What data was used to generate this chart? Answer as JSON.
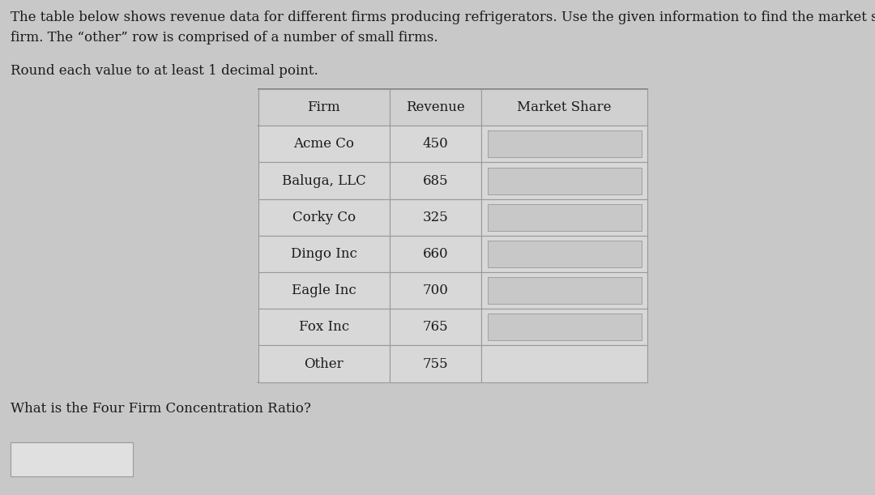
{
  "title_line1": "The table below shows revenue data for different firms producing refrigerators. Use the given information to find the market share of each",
  "title_line2": "firm. The “other” row is comprised of a number of small firms.",
  "subtitle_text": "Round each value to at least 1 decimal point.",
  "question_text": "What is the Four Firm Concentration Ratio?",
  "col_headers": [
    "Firm",
    "Revenue",
    "Market Share"
  ],
  "firms": [
    "Acme Co",
    "Baluga, LLC",
    "Corky Co",
    "Dingo Inc",
    "Eagle Inc",
    "Fox Inc",
    "Other"
  ],
  "revenues": [
    "450",
    "685",
    "325",
    "660",
    "700",
    "765",
    "755"
  ],
  "bg_color": "#c8c8c8",
  "table_bg": "#d8d8d8",
  "cell_input_color": "#c8c8c8",
  "header_bg": "#d0d0d0",
  "text_color": "#1a1a1a",
  "border_color": "#999999",
  "title_fontsize": 12,
  "subtitle_fontsize": 12,
  "question_fontsize": 12,
  "table_fontsize": 12
}
